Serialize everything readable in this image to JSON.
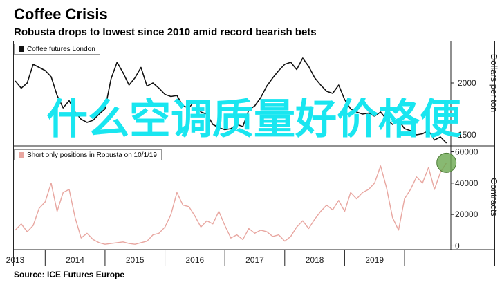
{
  "title": "Coffee Crisis",
  "subtitle": "Robusta drops to lowest since 2010 amid record bearish bets",
  "source": "Source: ICE Futures Europe",
  "watermark": "什么空调质量好价格便",
  "colors": {
    "top_line": "#111111",
    "bottom_line": "#e8a6a0",
    "highlight": "#6aa84f"
  },
  "chart_data": [
    {
      "type": "line",
      "legend": "Coffee futures London",
      "ylabel": "Dollars per ton",
      "yticks": [
        1500,
        2000
      ],
      "ylim": [
        1400,
        2400
      ],
      "x": [
        2012.5,
        2012.6,
        2012.7,
        2012.8,
        2012.9,
        2013.0,
        2013.1,
        2013.2,
        2013.3,
        2013.4,
        2013.5,
        2013.6,
        2013.7,
        2013.8,
        2013.9,
        2014.0,
        2014.1,
        2014.2,
        2014.3,
        2014.4,
        2014.5,
        2014.6,
        2014.7,
        2014.8,
        2014.9,
        2015.0,
        2015.1,
        2015.2,
        2015.3,
        2015.4,
        2015.5,
        2015.6,
        2015.7,
        2015.8,
        2015.9,
        2016.0,
        2016.1,
        2016.2,
        2016.3,
        2016.4,
        2016.5,
        2016.6,
        2016.7,
        2016.8,
        2016.9,
        2017.0,
        2017.1,
        2017.2,
        2017.3,
        2017.4,
        2017.5,
        2017.6,
        2017.7,
        2017.8,
        2017.9,
        2018.0,
        2018.1,
        2018.2,
        2018.3,
        2018.4,
        2018.5,
        2018.6,
        2018.7,
        2018.8,
        2018.9,
        2019.0,
        2019.1,
        2019.2,
        2019.3,
        2019.4,
        2019.5,
        2019.6,
        2019.7
      ],
      "values": [
        2020,
        1950,
        2000,
        2180,
        2150,
        2120,
        2060,
        1880,
        1760,
        1830,
        1720,
        1650,
        1620,
        1640,
        1700,
        1750,
        2040,
        2200,
        2100,
        1980,
        2050,
        2150,
        1970,
        2000,
        1950,
        1890,
        1870,
        1880,
        1780,
        1760,
        1830,
        1720,
        1700,
        1600,
        1570,
        1550,
        1560,
        1600,
        1580,
        1740,
        1780,
        1860,
        1970,
        2050,
        2120,
        2180,
        2200,
        2130,
        2240,
        2160,
        2050,
        1980,
        1920,
        1900,
        1980,
        1840,
        1750,
        1720,
        1700,
        1710,
        1680,
        1720,
        1650,
        1600,
        1640,
        1560,
        1540,
        1500,
        1510,
        1540,
        1450,
        1480,
        1420
      ]
    },
    {
      "type": "line",
      "legend": "Short only positions in Robusta on 10/1/19",
      "ylabel": "Contracts",
      "yticks": [
        0,
        20000,
        40000,
        60000
      ],
      "ylim": [
        -2000,
        62000
      ],
      "xticks": [
        "2013",
        "2014",
        "2015",
        "2016",
        "2017",
        "2018",
        "2019"
      ],
      "x": [
        2012.5,
        2012.6,
        2012.7,
        2012.8,
        2012.9,
        2013.0,
        2013.1,
        2013.2,
        2013.3,
        2013.4,
        2013.5,
        2013.6,
        2013.7,
        2013.8,
        2013.9,
        2014.0,
        2014.1,
        2014.2,
        2014.3,
        2014.4,
        2014.5,
        2014.6,
        2014.7,
        2014.8,
        2014.9,
        2015.0,
        2015.1,
        2015.2,
        2015.3,
        2015.4,
        2015.5,
        2015.6,
        2015.7,
        2015.8,
        2015.9,
        2016.0,
        2016.1,
        2016.2,
        2016.3,
        2016.4,
        2016.5,
        2016.6,
        2016.7,
        2016.8,
        2016.9,
        2017.0,
        2017.1,
        2017.2,
        2017.3,
        2017.4,
        2017.5,
        2017.6,
        2017.7,
        2017.8,
        2017.9,
        2018.0,
        2018.1,
        2018.2,
        2018.3,
        2018.4,
        2018.5,
        2018.6,
        2018.7,
        2018.8,
        2018.9,
        2019.0,
        2019.1,
        2019.2,
        2019.3,
        2019.4,
        2019.5,
        2019.6,
        2019.7
      ],
      "values": [
        10000,
        14000,
        9000,
        13000,
        24000,
        28000,
        40000,
        22000,
        34000,
        36000,
        18000,
        5000,
        8000,
        4000,
        2000,
        1000,
        1500,
        2000,
        2500,
        1500,
        1000,
        2000,
        3000,
        7000,
        8000,
        12000,
        20000,
        34000,
        26000,
        25000,
        19000,
        12000,
        16000,
        14000,
        22000,
        13000,
        5000,
        7000,
        4000,
        11000,
        8000,
        10000,
        9000,
        6000,
        7000,
        3000,
        6000,
        12000,
        16000,
        11000,
        17000,
        22000,
        26000,
        23000,
        29000,
        22000,
        34000,
        30000,
        34000,
        36000,
        40000,
        51000,
        37000,
        18000,
        10000,
        30000,
        36000,
        44000,
        40000,
        50000,
        36000,
        47000,
        53000
      ]
    }
  ]
}
